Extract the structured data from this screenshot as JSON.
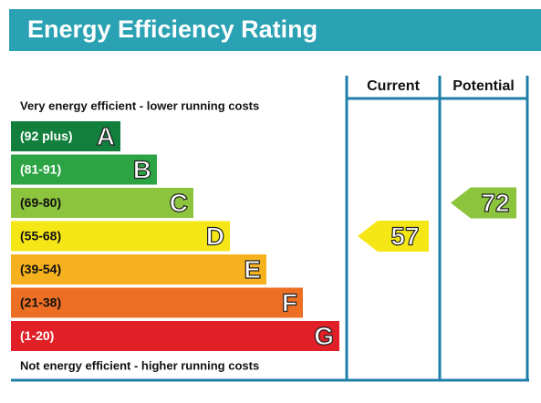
{
  "chart_data": {
    "type": "energy-rating",
    "title": "Energy Efficiency Rating",
    "top_note": "Very energy efficient - lower running costs",
    "bottom_note": "Not energy efficient - higher running costs",
    "bands": [
      {
        "range": "(92 plus)",
        "letter": "A",
        "color": "#12803c"
      },
      {
        "range": "(81-91)",
        "letter": "B",
        "color": "#2ca444"
      },
      {
        "range": "(69-80)",
        "letter": "C",
        "color": "#8cc43e"
      },
      {
        "range": "(55-68)",
        "letter": "D",
        "color": "#f5e716"
      },
      {
        "range": "(39-54)",
        "letter": "E",
        "color": "#f6b21e"
      },
      {
        "range": "(21-38)",
        "letter": "F",
        "color": "#ec6f23"
      },
      {
        "range": "(1-20)",
        "letter": "G",
        "color": "#e01f27"
      }
    ],
    "columns": [
      "Current",
      "Potential"
    ],
    "values": [
      57,
      72
    ]
  }
}
